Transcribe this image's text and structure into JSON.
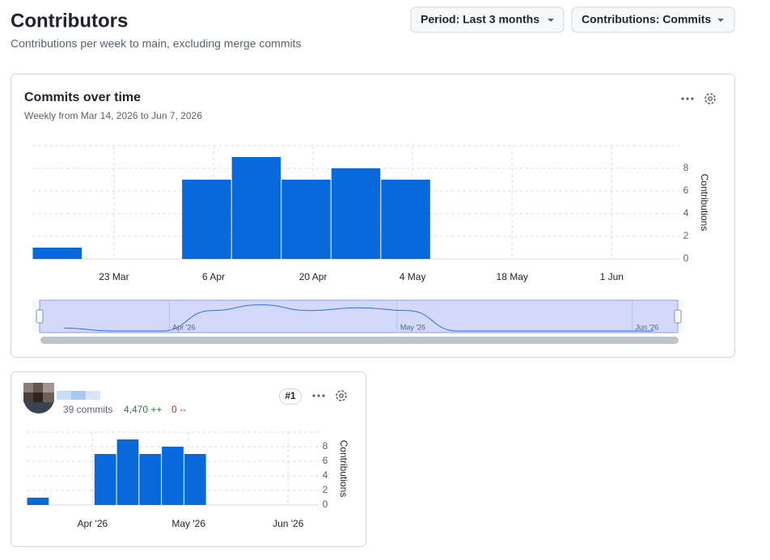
{
  "header": {
    "title": "Contributors",
    "subtitle": "Contributions per week to main, excluding merge commits",
    "period_button": "Period: Last 3 months",
    "contributions_button": "Contributions: Commits"
  },
  "main_chart": {
    "type": "bar",
    "title": "Commits over time",
    "subtitle": "Weekly from Mar 14, 2026 to Jun 7, 2026",
    "y_label": "Contributions",
    "color": "#0969da",
    "values": [
      1,
      0,
      0,
      7,
      9,
      7,
      8,
      7,
      0,
      0,
      0,
      0,
      0
    ],
    "xlim": [
      0,
      13
    ],
    "xticks": [
      {
        "value": 1.64,
        "label": "23 Mar"
      },
      {
        "value": 3.64,
        "label": "6 Apr"
      },
      {
        "value": 5.64,
        "label": "20 Apr"
      },
      {
        "value": 7.64,
        "label": "4 May"
      },
      {
        "value": 9.64,
        "label": "18 May"
      },
      {
        "value": 11.64,
        "label": "1 Jun"
      }
    ],
    "ylim": [
      0,
      10
    ],
    "yticks": [
      0,
      2,
      4,
      6,
      8
    ],
    "grid": true,
    "navigator_ticks": [
      {
        "value": 2.64,
        "label": "Apr '26"
      },
      {
        "value": 7.28,
        "label": "May '26"
      },
      {
        "value": 12.07,
        "label": "Jun '26"
      }
    ]
  },
  "contributor": {
    "rank": "#1",
    "commits": "39 commits",
    "additions": "4,470 ++",
    "deletions": "0 --",
    "chart": {
      "type": "bar",
      "y_label": "Contributions",
      "color": "#0969da",
      "values": [
        1,
        0,
        0,
        7,
        9,
        7,
        8,
        7,
        0,
        0,
        0,
        0,
        0
      ],
      "xlim": [
        0,
        13
      ],
      "xticks": [
        {
          "value": 2.93,
          "label": "Apr '26"
        },
        {
          "value": 7.21,
          "label": "May '26"
        },
        {
          "value": 11.64,
          "label": "Jun '26"
        }
      ],
      "ylim": [
        0,
        10
      ],
      "yticks": [
        0,
        2,
        4,
        6,
        8
      ],
      "grid": true
    }
  }
}
